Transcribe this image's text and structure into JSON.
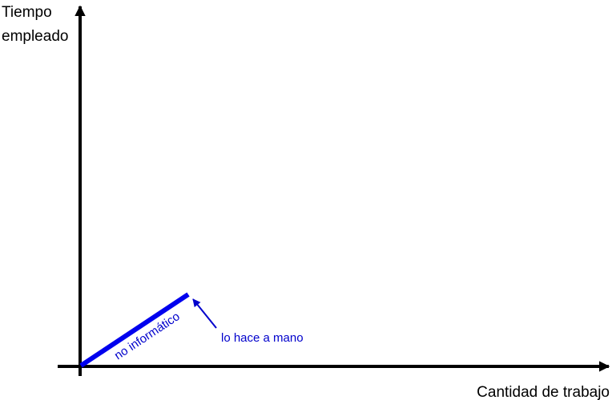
{
  "colors": {
    "axis": "#000000",
    "series": "#0000ee",
    "annotation": "#0000cc"
  },
  "axes": {
    "y_label_line1": "Tiempo",
    "y_label_line2": "empleado",
    "x_label": "Cantidad de trabajo"
  },
  "series": {
    "label": "no informático"
  },
  "annotation": {
    "text": "lo hace a mano"
  }
}
